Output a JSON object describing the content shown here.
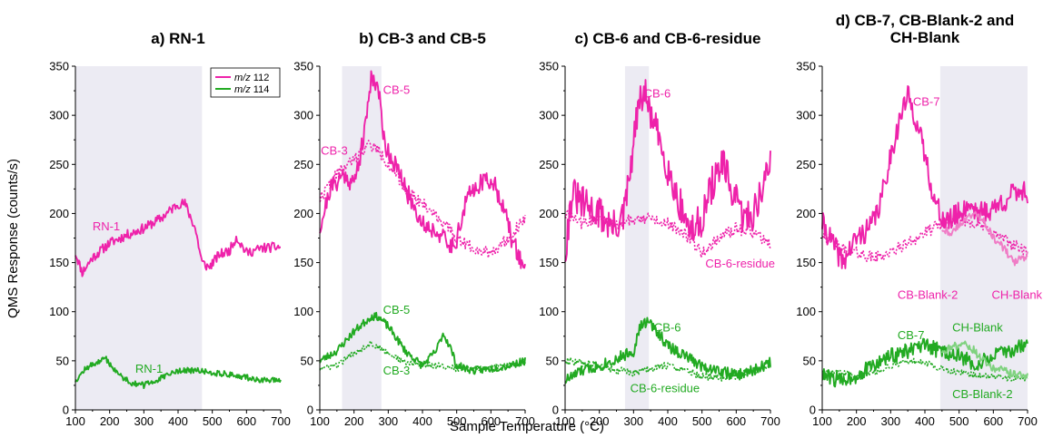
{
  "figure": {
    "ylabel": "QMS Response (counts/s)",
    "xlabel": "Sample Temperature (°C)"
  },
  "legend": {
    "entries": [
      {
        "label": "m/z 112",
        "color": "#ee22aa"
      },
      {
        "label": "m/z 114",
        "color": "#22aa22"
      }
    ]
  },
  "colors": {
    "pink": "#ee22aa",
    "green": "#22aa22",
    "lightpink": "#f07cc6",
    "lightgreen": "#7fd27f",
    "shade": "#ecebf3",
    "shade_dark": "#e2e1ee"
  },
  "chart_data": [
    {
      "type": "line",
      "title": "a) RN-1",
      "xlim": [
        100,
        700
      ],
      "ylim": [
        0,
        350
      ],
      "xticks": [
        100,
        200,
        300,
        400,
        500,
        600,
        700
      ],
      "yticks": [
        0,
        50,
        100,
        150,
        200,
        250,
        300,
        350
      ],
      "shaded": [
        [
          100,
          470
        ]
      ],
      "series": [
        {
          "name": "RN-1",
          "mz": 112,
          "style": "solid",
          "color": "#ee22aa",
          "noise": 5,
          "seed": 11,
          "x": [
            100,
            120,
            150,
            200,
            250,
            300,
            350,
            400,
            420,
            450,
            470,
            490,
            520,
            550,
            570,
            600,
            650,
            700
          ],
          "y": [
            160,
            140,
            155,
            170,
            178,
            185,
            195,
            210,
            210,
            185,
            150,
            145,
            158,
            162,
            176,
            160,
            165,
            166
          ]
        },
        {
          "name": "RN-1",
          "mz": 114,
          "style": "solid",
          "color": "#22aa22",
          "noise": 3,
          "seed": 12,
          "x": [
            100,
            130,
            160,
            190,
            220,
            260,
            300,
            350,
            400,
            450,
            500,
            550,
            600,
            650,
            700
          ],
          "y": [
            30,
            42,
            48,
            52,
            38,
            28,
            25,
            32,
            40,
            40,
            38,
            36,
            33,
            30,
            30
          ]
        }
      ],
      "labels": [
        {
          "text": "RN-1",
          "x": 150,
          "y": 183,
          "color": "#ee22aa"
        },
        {
          "text": "RN-1",
          "x": 275,
          "y": 38,
          "color": "#22aa22"
        }
      ]
    },
    {
      "type": "line",
      "title": "b) CB-3 and CB-5",
      "xlim": [
        100,
        700
      ],
      "ylim": [
        0,
        350
      ],
      "xticks": [
        100,
        200,
        300,
        400,
        500,
        600,
        700
      ],
      "yticks": [
        0,
        50,
        100,
        150,
        200,
        250,
        300,
        350
      ],
      "shaded": [
        [
          165,
          280
        ]
      ],
      "series": [
        {
          "name": "CB-5",
          "mz": 112,
          "style": "solid",
          "color": "#ee22aa",
          "noise": 10,
          "seed": 21,
          "x": [
            100,
            130,
            170,
            200,
            230,
            250,
            270,
            290,
            320,
            350,
            400,
            450,
            480,
            500,
            530,
            560,
            600,
            630,
            660,
            690,
            700
          ],
          "y": [
            185,
            225,
            240,
            230,
            280,
            340,
            330,
            270,
            250,
            225,
            190,
            180,
            165,
            175,
            215,
            230,
            235,
            215,
            175,
            150,
            145
          ]
        },
        {
          "name": "CB-3",
          "mz": 112,
          "style": "dotted",
          "color": "#ee22aa",
          "noise": 6,
          "seed": 22,
          "x": [
            100,
            150,
            200,
            240,
            270,
            300,
            350,
            400,
            450,
            500,
            550,
            600,
            650,
            700
          ],
          "y": [
            215,
            240,
            255,
            270,
            265,
            250,
            225,
            210,
            195,
            175,
            165,
            160,
            175,
            195
          ]
        },
        {
          "name": "CB-5",
          "mz": 114,
          "style": "solid",
          "color": "#22aa22",
          "noise": 4,
          "seed": 23,
          "x": [
            100,
            150,
            200,
            250,
            270,
            300,
            350,
            400,
            440,
            460,
            480,
            500,
            550,
            600,
            650,
            700
          ],
          "y": [
            50,
            60,
            80,
            95,
            95,
            85,
            60,
            45,
            60,
            78,
            65,
            45,
            40,
            42,
            45,
            50
          ]
        },
        {
          "name": "CB-3",
          "mz": 114,
          "style": "dotted",
          "color": "#22aa22",
          "noise": 3,
          "seed": 24,
          "x": [
            100,
            150,
            200,
            250,
            300,
            350,
            400,
            450,
            500,
            550,
            600,
            650,
            700
          ],
          "y": [
            42,
            45,
            58,
            68,
            58,
            48,
            46,
            45,
            42,
            42,
            43,
            46,
            50
          ]
        }
      ],
      "labels": [
        {
          "text": "CB-5",
          "x": 285,
          "y": 322,
          "color": "#ee22aa"
        },
        {
          "text": "CB-3",
          "x": 103,
          "y": 260,
          "color": "#ee22aa"
        },
        {
          "text": "CB-5",
          "x": 285,
          "y": 98,
          "color": "#22aa22"
        },
        {
          "text": "CB-3",
          "x": 285,
          "y": 36,
          "color": "#22aa22"
        }
      ]
    },
    {
      "type": "line",
      "title": "c) CB-6 and CB-6-residue",
      "xlim": [
        100,
        700
      ],
      "ylim": [
        0,
        350
      ],
      "xticks": [
        100,
        200,
        300,
        400,
        500,
        600,
        700
      ],
      "yticks": [
        0,
        50,
        100,
        150,
        200,
        250,
        300,
        350
      ],
      "shaded": [
        [
          275,
          345
        ]
      ],
      "series": [
        {
          "name": "CB-6",
          "mz": 112,
          "style": "solid",
          "color": "#ee22aa",
          "noise": 18,
          "seed": 31,
          "x": [
            100,
            120,
            150,
            200,
            240,
            270,
            290,
            310,
            330,
            350,
            380,
            410,
            440,
            470,
            500,
            530,
            560,
            590,
            620,
            650,
            680,
            700
          ],
          "y": [
            160,
            220,
            210,
            200,
            185,
            195,
            240,
            300,
            325,
            300,
            270,
            235,
            205,
            180,
            195,
            230,
            250,
            220,
            195,
            200,
            230,
            250
          ]
        },
        {
          "name": "CB-6-residue",
          "mz": 112,
          "style": "dotted",
          "color": "#ee22aa",
          "noise": 6,
          "seed": 32,
          "x": [
            100,
            150,
            200,
            250,
            300,
            350,
            400,
            450,
            500,
            550,
            600,
            650,
            700
          ],
          "y": [
            200,
            190,
            195,
            188,
            195,
            195,
            190,
            180,
            160,
            175,
            185,
            180,
            170
          ]
        },
        {
          "name": "CB-6",
          "mz": 114,
          "style": "solid",
          "color": "#22aa22",
          "noise": 6,
          "seed": 33,
          "x": [
            100,
            150,
            200,
            250,
            300,
            320,
            340,
            370,
            400,
            450,
            500,
            550,
            600,
            650,
            700
          ],
          "y": [
            30,
            40,
            45,
            52,
            60,
            85,
            90,
            80,
            65,
            55,
            45,
            40,
            35,
            40,
            48
          ]
        },
        {
          "name": "CB-6-residue",
          "mz": 114,
          "style": "dotted",
          "color": "#22aa22",
          "noise": 4,
          "seed": 34,
          "x": [
            100,
            150,
            200,
            250,
            300,
            350,
            400,
            450,
            500,
            550,
            600,
            650,
            700
          ],
          "y": [
            50,
            48,
            45,
            40,
            38,
            42,
            45,
            40,
            35,
            33,
            35,
            40,
            45
          ]
        }
      ],
      "labels": [
        {
          "text": "CB-6",
          "x": 330,
          "y": 318,
          "color": "#ee22aa"
        },
        {
          "text": "CB-6-residue",
          "x": 510,
          "y": 145,
          "color": "#ee22aa"
        },
        {
          "text": "CB-6",
          "x": 360,
          "y": 80,
          "color": "#22aa22"
        },
        {
          "text": "CB-6-residue",
          "x": 290,
          "y": 18,
          "color": "#22aa22"
        }
      ]
    },
    {
      "type": "line",
      "title": "d) CB-7, CB-Blank-2 and CH-Blank",
      "xlim": [
        100,
        700
      ],
      "ylim": [
        0,
        350
      ],
      "xticks": [
        100,
        200,
        300,
        400,
        500,
        600,
        700
      ],
      "yticks": [
        0,
        50,
        100,
        150,
        200,
        250,
        300,
        350
      ],
      "shaded": [
        [
          445,
          700
        ]
      ],
      "series": [
        {
          "name": "CB-7",
          "mz": 112,
          "style": "solid",
          "color": "#ee22aa",
          "noise": 12,
          "seed": 41,
          "x": [
            100,
            130,
            160,
            200,
            240,
            270,
            300,
            330,
            350,
            370,
            400,
            430,
            460,
            500,
            530,
            560,
            600,
            640,
            680,
            700
          ],
          "y": [
            190,
            170,
            150,
            175,
            185,
            210,
            260,
            300,
            320,
            300,
            260,
            210,
            190,
            200,
            210,
            200,
            205,
            215,
            225,
            220
          ]
        },
        {
          "name": "CB-Blank-2",
          "mz": 112,
          "style": "dotted",
          "color": "#ee22aa",
          "noise": 6,
          "seed": 42,
          "x": [
            100,
            150,
            200,
            250,
            300,
            350,
            400,
            450,
            500,
            550,
            600,
            650,
            700
          ],
          "y": [
            180,
            165,
            160,
            155,
            160,
            170,
            180,
            190,
            195,
            190,
            180,
            170,
            160
          ]
        },
        {
          "name": "CH-Blank",
          "mz": 112,
          "style": "solid",
          "color": "#f07cc6",
          "noise": 4,
          "seed": 43,
          "x": [
            450,
            480,
            510,
            540,
            570,
            600,
            630,
            660,
            690,
            700
          ],
          "y": [
            185,
            180,
            192,
            200,
            195,
            175,
            165,
            150,
            155,
            160
          ]
        },
        {
          "name": "CB-7",
          "mz": 114,
          "style": "solid",
          "color": "#22aa22",
          "noise": 8,
          "seed": 44,
          "x": [
            100,
            150,
            200,
            250,
            300,
            350,
            400,
            450,
            500,
            550,
            600,
            650,
            700
          ],
          "y": [
            35,
            30,
            35,
            45,
            55,
            60,
            65,
            60,
            55,
            45,
            55,
            60,
            68
          ]
        },
        {
          "name": "CB-Blank-2",
          "mz": 114,
          "style": "dotted",
          "color": "#22aa22",
          "noise": 3,
          "seed": 45,
          "x": [
            100,
            150,
            200,
            250,
            300,
            350,
            400,
            450,
            500,
            550,
            600,
            650,
            700
          ],
          "y": [
            40,
            38,
            35,
            38,
            45,
            50,
            48,
            42,
            38,
            35,
            34,
            32,
            32
          ]
        },
        {
          "name": "CH-Blank",
          "mz": 114,
          "style": "solid",
          "color": "#7fd27f",
          "noise": 4,
          "seed": 46,
          "x": [
            450,
            480,
            510,
            540,
            570,
            600,
            630,
            660,
            690,
            700
          ],
          "y": [
            60,
            64,
            68,
            62,
            50,
            42,
            40,
            36,
            35,
            35
          ]
        }
      ],
      "labels": [
        {
          "text": "CB-7",
          "x": 365,
          "y": 310,
          "color": "#ee22aa"
        },
        {
          "text": "CB-Blank-2",
          "x": 320,
          "y": 113,
          "color": "#ee22aa"
        },
        {
          "text": "CH-Blank",
          "x": 595,
          "y": 113,
          "color": "#ee22aa"
        },
        {
          "text": "CB-7",
          "x": 320,
          "y": 72,
          "color": "#22aa22"
        },
        {
          "text": "CH-Blank",
          "x": 480,
          "y": 80,
          "color": "#22aa22"
        },
        {
          "text": "CB-Blank-2",
          "x": 480,
          "y": 12,
          "color": "#22aa22"
        }
      ]
    }
  ]
}
